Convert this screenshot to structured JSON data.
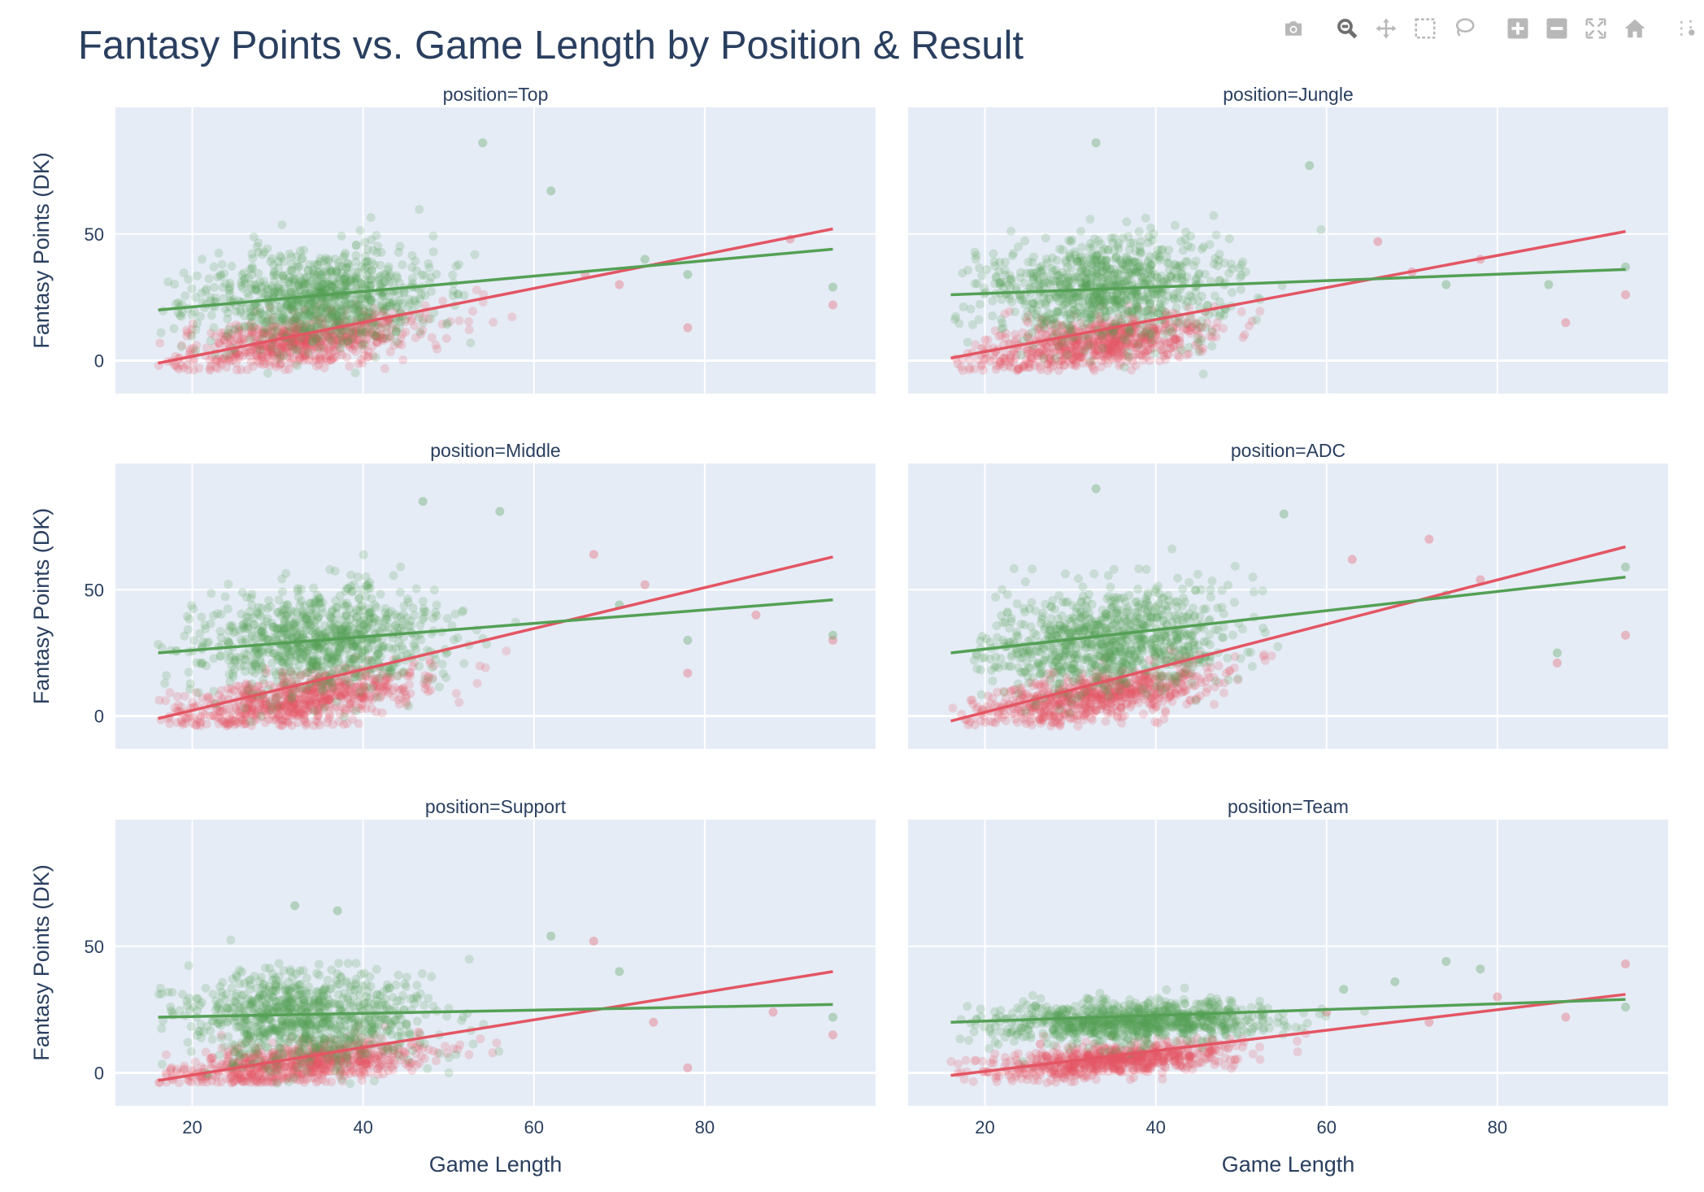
{
  "chart_data": {
    "type": "scatter",
    "title": "Fantasy Points vs. Game Length by Position & Result",
    "xlabel": "Game Length",
    "ylabel": "Fantasy Points (DK)",
    "xlim": [
      11,
      100
    ],
    "ylim": [
      -13,
      100
    ],
    "x_ticks": [
      20,
      40,
      60,
      80
    ],
    "y_ticks": [
      0,
      50
    ],
    "grid": true,
    "series_colors": {
      "loss": "#e45563",
      "win": "#54a055"
    },
    "facets": [
      {
        "title": "position=Top",
        "win": {
          "trend": [
            [
              16,
              20
            ],
            [
              95,
              44
            ]
          ],
          "center": [
            35,
            25
          ],
          "spread": [
            7,
            9.5
          ],
          "outliers": [
            [
              54,
              86
            ],
            [
              62,
              67
            ],
            [
              73,
              40
            ],
            [
              95,
              29
            ],
            [
              78,
              34
            ]
          ]
        },
        "loss": {
          "trend": [
            [
              16,
              -1
            ],
            [
              95,
              52
            ]
          ],
          "center": [
            33,
            8
          ],
          "spread": [
            7,
            5
          ],
          "outliers": [
            [
              78,
              13
            ],
            [
              95,
              22
            ],
            [
              70,
              30
            ],
            [
              66,
              34
            ],
            [
              90,
              48
            ]
          ]
        }
      },
      {
        "title": "position=Jungle",
        "win": {
          "trend": [
            [
              16,
              26
            ],
            [
              95,
              36
            ]
          ],
          "center": [
            34,
            28
          ],
          "spread": [
            7,
            10
          ],
          "outliers": [
            [
              33,
              86
            ],
            [
              58,
              77
            ],
            [
              95,
              37
            ],
            [
              74,
              30
            ],
            [
              86,
              30
            ]
          ]
        },
        "loss": {
          "trend": [
            [
              16,
              1
            ],
            [
              95,
              51
            ]
          ],
          "center": [
            33,
            7
          ],
          "spread": [
            7,
            5
          ],
          "outliers": [
            [
              95,
              26
            ],
            [
              88,
              15
            ],
            [
              66,
              47
            ],
            [
              70,
              35
            ],
            [
              78,
              40
            ]
          ]
        }
      },
      {
        "title": "position=Middle",
        "win": {
          "trend": [
            [
              16,
              25
            ],
            [
              95,
              46
            ]
          ],
          "center": [
            35,
            30
          ],
          "spread": [
            7,
            10
          ],
          "outliers": [
            [
              47,
              85
            ],
            [
              56,
              81
            ],
            [
              78,
              30
            ],
            [
              95,
              32
            ],
            [
              70,
              44
            ]
          ]
        },
        "loss": {
          "trend": [
            [
              16,
              -1
            ],
            [
              95,
              63
            ]
          ],
          "center": [
            33,
            7
          ],
          "spread": [
            7,
            5
          ],
          "outliers": [
            [
              78,
              17
            ],
            [
              95,
              30
            ],
            [
              73,
              52
            ],
            [
              67,
              64
            ],
            [
              86,
              40
            ]
          ]
        }
      },
      {
        "title": "position=ADC",
        "win": {
          "trend": [
            [
              16,
              25
            ],
            [
              95,
              55
            ]
          ],
          "center": [
            35,
            30
          ],
          "spread": [
            7,
            10
          ],
          "outliers": [
            [
              33,
              90
            ],
            [
              55,
              80
            ],
            [
              87,
              25
            ],
            [
              95,
              59
            ],
            [
              74,
              48
            ]
          ]
        },
        "loss": {
          "trend": [
            [
              16,
              -2
            ],
            [
              95,
              67
            ]
          ],
          "center": [
            33,
            8
          ],
          "spread": [
            7,
            5
          ],
          "outliers": [
            [
              95,
              32
            ],
            [
              87,
              21
            ],
            [
              72,
              70
            ],
            [
              78,
              54
            ],
            [
              63,
              62
            ]
          ]
        }
      },
      {
        "title": "position=Support",
        "win": {
          "trend": [
            [
              16,
              22
            ],
            [
              95,
              27
            ]
          ],
          "center": [
            33,
            22
          ],
          "spread": [
            7,
            9
          ],
          "outliers": [
            [
              32,
              66
            ],
            [
              37,
              64
            ],
            [
              62,
              54
            ],
            [
              95,
              22
            ],
            [
              70,
              40
            ]
          ]
        },
        "loss": {
          "trend": [
            [
              16,
              -3
            ],
            [
              95,
              40
            ]
          ],
          "center": [
            33,
            4
          ],
          "spread": [
            7,
            4
          ],
          "outliers": [
            [
              78,
              2
            ],
            [
              95,
              15
            ],
            [
              67,
              52
            ],
            [
              74,
              20
            ],
            [
              88,
              24
            ]
          ]
        }
      },
      {
        "title": "position=Team",
        "win": {
          "trend": [
            [
              16,
              20
            ],
            [
              95,
              29
            ]
          ],
          "center": [
            37,
            20
          ],
          "spread": [
            8,
            4
          ],
          "outliers": [
            [
              74,
              44
            ],
            [
              78,
              41
            ],
            [
              95,
              26
            ],
            [
              68,
              36
            ],
            [
              62,
              33
            ]
          ]
        },
        "loss": {
          "trend": [
            [
              16,
              -1
            ],
            [
              95,
              31
            ]
          ],
          "center": [
            35,
            5
          ],
          "spread": [
            7,
            3
          ],
          "outliers": [
            [
              95,
              43
            ],
            [
              88,
              22
            ],
            [
              72,
              20
            ],
            [
              80,
              30
            ],
            [
              60,
              24
            ]
          ]
        }
      }
    ]
  },
  "modebar": {
    "buttons": [
      "camera-icon",
      "zoom-icon",
      "pan-icon",
      "box-select-icon",
      "lasso-select-icon",
      "zoom-in-icon",
      "zoom-out-icon",
      "autoscale-icon",
      "reset-axes-icon",
      "spike-lines-icon"
    ],
    "active": "zoom-icon"
  }
}
